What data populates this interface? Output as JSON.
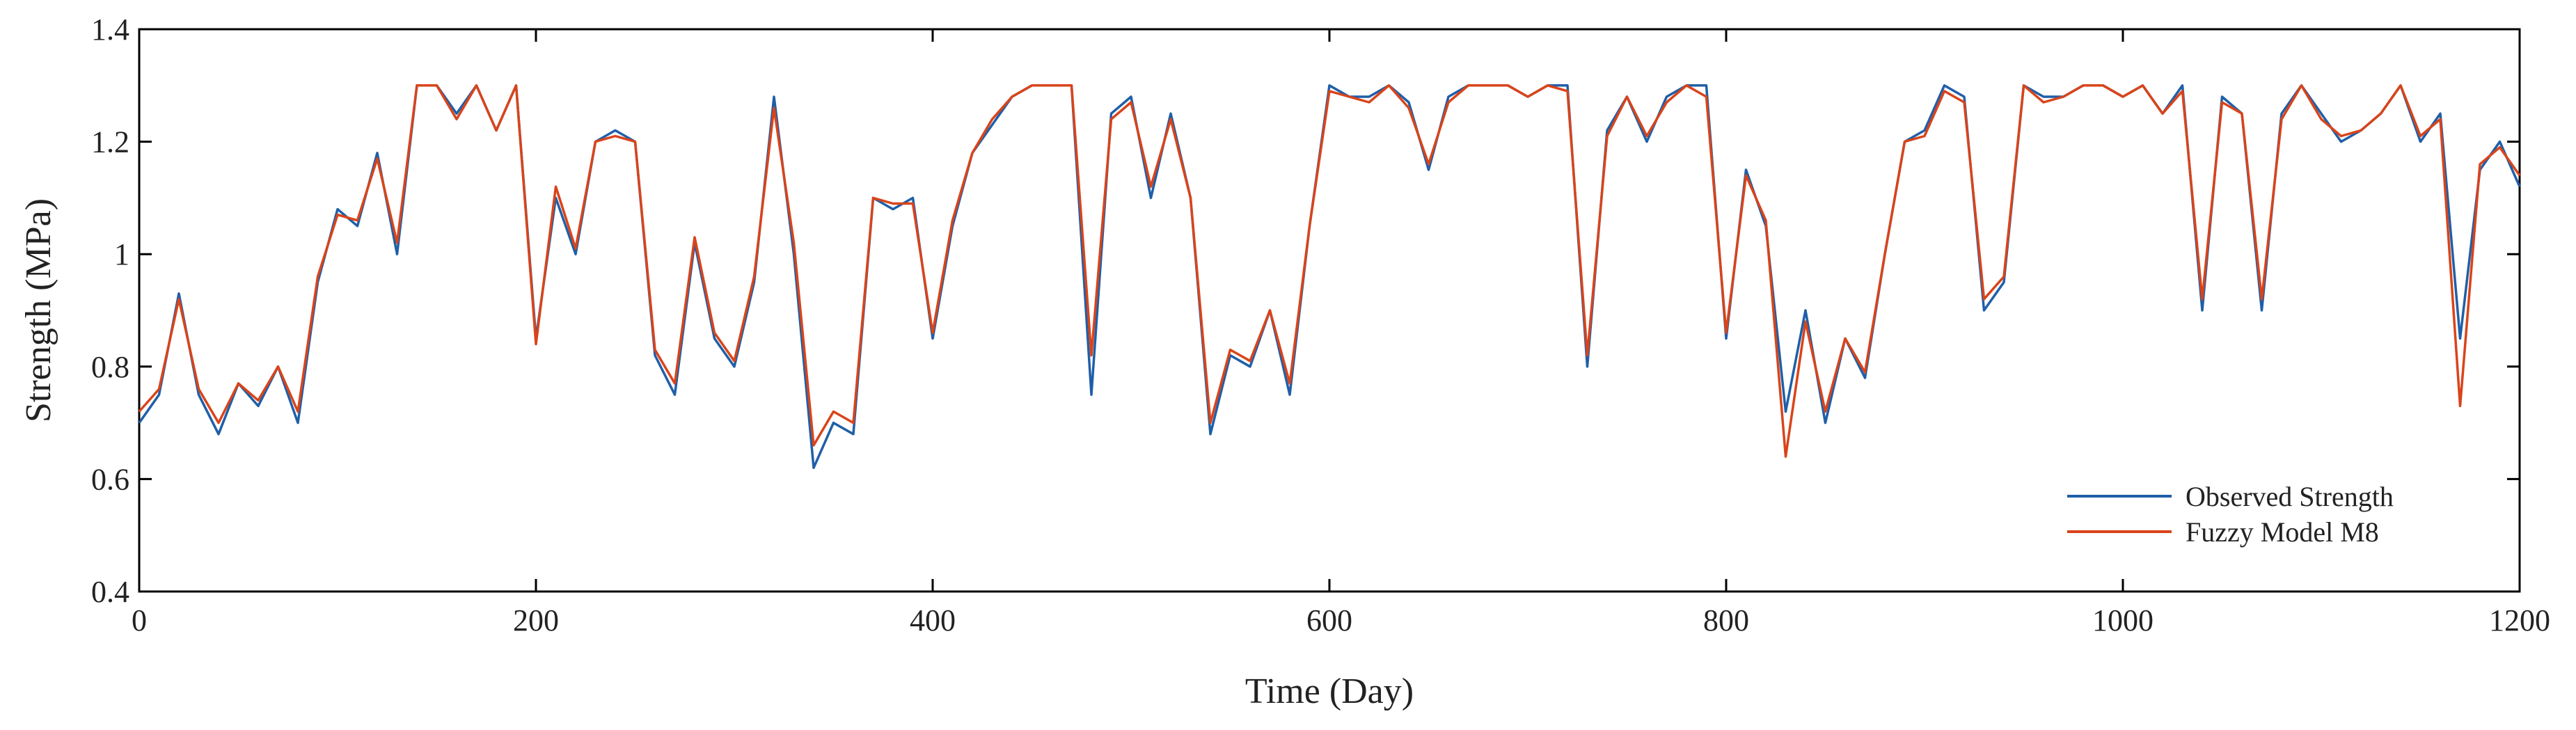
{
  "chart_data": {
    "type": "line",
    "xlabel": "Time (Day)",
    "ylabel": "Strength (MPa)",
    "xlim": [
      0,
      1200
    ],
    "ylim": [
      0.4,
      1.4
    ],
    "x_ticks": [
      "0",
      "200",
      "400",
      "600",
      "800",
      "1000",
      "1200"
    ],
    "y_ticks": [
      "0.4",
      "0.6",
      "0.8",
      "1",
      "1.2",
      "1.4"
    ],
    "grid": false,
    "legend_position": "bottom-right",
    "x": [
      0,
      10,
      20,
      30,
      40,
      50,
      60,
      70,
      80,
      90,
      100,
      110,
      120,
      130,
      140,
      150,
      160,
      170,
      180,
      190,
      200,
      210,
      220,
      230,
      240,
      250,
      260,
      270,
      280,
      290,
      300,
      310,
      320,
      330,
      340,
      350,
      360,
      370,
      380,
      390,
      400,
      410,
      420,
      430,
      440,
      450,
      460,
      470,
      480,
      490,
      500,
      510,
      520,
      530,
      540,
      550,
      560,
      570,
      580,
      590,
      600,
      610,
      620,
      630,
      640,
      650,
      660,
      670,
      680,
      690,
      700,
      710,
      720,
      730,
      740,
      750,
      760,
      770,
      780,
      790,
      800,
      810,
      820,
      830,
      840,
      850,
      860,
      870,
      880,
      890,
      900,
      910,
      920,
      930,
      940,
      950,
      960,
      970,
      980,
      990,
      1000,
      1010,
      1020,
      1030,
      1040,
      1050,
      1060,
      1070,
      1080,
      1090,
      1100,
      1110,
      1120,
      1130,
      1140,
      1150,
      1160,
      1170,
      1180,
      1190,
      1200
    ],
    "series": [
      {
        "name": "Observed Strength",
        "color": "#1f5fa8",
        "values": [
          0.7,
          0.75,
          0.93,
          0.75,
          0.68,
          0.77,
          0.73,
          0.8,
          0.7,
          0.95,
          1.08,
          1.05,
          1.18,
          1.0,
          1.3,
          1.3,
          1.25,
          1.3,
          1.22,
          1.3,
          0.85,
          1.1,
          1.0,
          1.2,
          1.22,
          1.2,
          0.82,
          0.75,
          1.02,
          0.85,
          0.8,
          0.95,
          1.28,
          1.0,
          0.62,
          0.7,
          0.68,
          1.1,
          1.08,
          1.1,
          0.85,
          1.05,
          1.18,
          1.23,
          1.28,
          1.3,
          1.3,
          1.3,
          0.75,
          1.25,
          1.28,
          1.1,
          1.25,
          1.1,
          0.68,
          0.82,
          0.8,
          0.9,
          0.75,
          1.05,
          1.3,
          1.28,
          1.28,
          1.3,
          1.27,
          1.15,
          1.28,
          1.3,
          1.3,
          1.3,
          1.28,
          1.3,
          1.3,
          0.8,
          1.22,
          1.28,
          1.2,
          1.28,
          1.3,
          1.3,
          0.85,
          1.15,
          1.05,
          0.72,
          0.9,
          0.7,
          0.85,
          0.78,
          1.0,
          1.2,
          1.22,
          1.3,
          1.28,
          0.9,
          0.95,
          1.3,
          1.28,
          1.28,
          1.3,
          1.3,
          1.28,
          1.3,
          1.25,
          1.3,
          0.9,
          1.28,
          1.25,
          0.9,
          1.25,
          1.3,
          1.25,
          1.2,
          1.22,
          1.25,
          1.3,
          1.2,
          1.25,
          0.85,
          1.15,
          1.2,
          1.12
        ]
      },
      {
        "name": "Fuzzy Model M8",
        "color": "#d9441a",
        "values": [
          0.72,
          0.76,
          0.92,
          0.76,
          0.7,
          0.77,
          0.74,
          0.8,
          0.72,
          0.96,
          1.07,
          1.06,
          1.17,
          1.02,
          1.3,
          1.3,
          1.24,
          1.3,
          1.22,
          1.3,
          0.84,
          1.12,
          1.01,
          1.2,
          1.21,
          1.2,
          0.83,
          0.77,
          1.03,
          0.86,
          0.81,
          0.96,
          1.26,
          1.02,
          0.66,
          0.72,
          0.7,
          1.1,
          1.09,
          1.09,
          0.86,
          1.06,
          1.18,
          1.24,
          1.28,
          1.3,
          1.3,
          1.3,
          0.82,
          1.24,
          1.27,
          1.12,
          1.24,
          1.1,
          0.7,
          0.83,
          0.81,
          0.9,
          0.77,
          1.05,
          1.29,
          1.28,
          1.27,
          1.3,
          1.26,
          1.16,
          1.27,
          1.3,
          1.3,
          1.3,
          1.28,
          1.3,
          1.29,
          0.82,
          1.21,
          1.28,
          1.21,
          1.27,
          1.3,
          1.28,
          0.86,
          1.14,
          1.06,
          0.64,
          0.88,
          0.72,
          0.85,
          0.79,
          1.0,
          1.2,
          1.21,
          1.29,
          1.27,
          0.92,
          0.96,
          1.3,
          1.27,
          1.28,
          1.3,
          1.3,
          1.28,
          1.3,
          1.25,
          1.29,
          0.92,
          1.27,
          1.25,
          0.92,
          1.24,
          1.3,
          1.24,
          1.21,
          1.22,
          1.25,
          1.3,
          1.21,
          1.24,
          0.73,
          1.16,
          1.19,
          1.14
        ]
      }
    ]
  }
}
